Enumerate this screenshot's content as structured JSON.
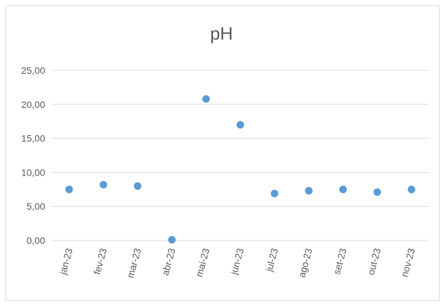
{
  "chart_data": {
    "type": "scatter",
    "title": "pH",
    "xlabel": "",
    "ylabel": "",
    "categories": [
      "jan-23",
      "fev-23",
      "mar-23",
      "abr-23",
      "mai-23",
      "jun-23",
      "jul-23",
      "ago-23",
      "set-23",
      "out-23",
      "nov-23"
    ],
    "series": [
      {
        "values": [
          7.5,
          8.2,
          8.0,
          0.1,
          20.8,
          17.0,
          6.9,
          7.3,
          7.5,
          7.1,
          7.5
        ]
      }
    ],
    "ylim": [
      0,
      25
    ],
    "yticks": [
      "0,00",
      "5,00",
      "10,00",
      "15,00",
      "20,00",
      "25,00"
    ],
    "grid": true,
    "legend": "none",
    "marker_color": "#5b9bd5",
    "gridline_color": "#d9d9d9",
    "text_color": "#595959"
  }
}
